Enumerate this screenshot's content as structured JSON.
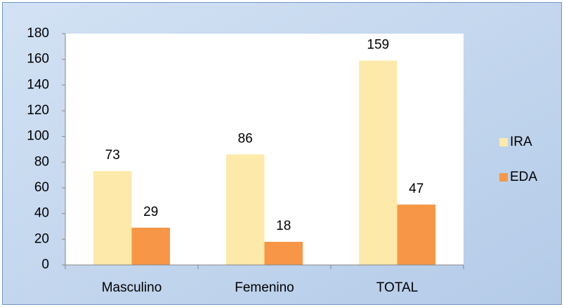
{
  "chart_data": {
    "type": "bar",
    "categories": [
      "Masculino",
      "Femenino",
      "TOTAL"
    ],
    "series": [
      {
        "name": "IRA",
        "color": "#fde9a9",
        "values": [
          73,
          86,
          159
        ]
      },
      {
        "name": "EDA",
        "color": "#f79646",
        "values": [
          29,
          18,
          47
        ]
      }
    ],
    "ylim": [
      0,
      180
    ],
    "yticks": [
      0,
      20,
      40,
      60,
      80,
      100,
      120,
      140,
      160,
      180
    ],
    "grid": false,
    "legend": "right",
    "data_labels": true
  }
}
